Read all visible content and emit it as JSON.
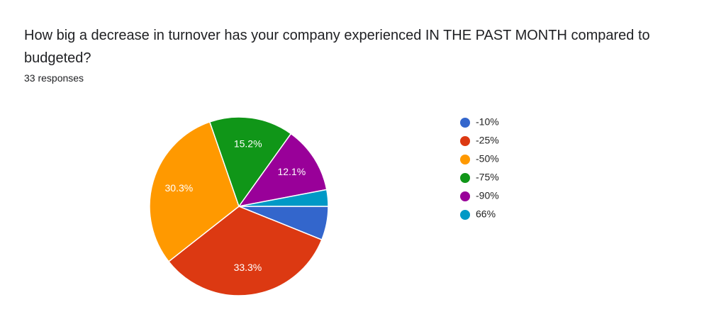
{
  "chart_data": {
    "type": "pie",
    "title": "How big a decrease in turnover has your company experienced IN THE PAST MONTH compared to budgeted?",
    "subtitle": "33 responses",
    "categories": [
      "-10%",
      "-25%",
      "-50%",
      "-75%",
      "-90%",
      "66%"
    ],
    "values": [
      6.1,
      33.3,
      30.3,
      15.2,
      12.1,
      3.0
    ],
    "value_labels": [
      null,
      "33.3%",
      "30.3%",
      "15.2%",
      "12.1%",
      null
    ],
    "colors": [
      "#3366cc",
      "#dc3912",
      "#ff9900",
      "#109618",
      "#990099",
      "#0099c6"
    ],
    "legend": "right"
  }
}
